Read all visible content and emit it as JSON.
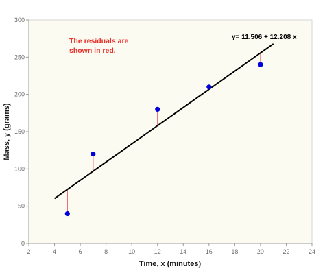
{
  "chart_data": {
    "type": "scatter",
    "title": "",
    "xlabel": "Time, x (minutes)",
    "ylabel": "Mass, y (grams)",
    "xlim": [
      2,
      24
    ],
    "ylim": [
      0,
      300
    ],
    "xticks": [
      2,
      4,
      6,
      8,
      10,
      12,
      14,
      16,
      18,
      20,
      22,
      24
    ],
    "yticks": [
      0,
      50,
      100,
      150,
      200,
      250,
      300
    ],
    "grid": false,
    "points": {
      "x": [
        5,
        7,
        12,
        16,
        20
      ],
      "y": [
        40,
        120,
        180,
        210,
        240
      ]
    },
    "fit_line": {
      "intercept": 11.506,
      "slope": 12.208,
      "x_range": [
        4,
        21
      ],
      "equation_label": "y= 11.506 + 12.208 x"
    },
    "annotation_lines": [
      "The residuals are",
      "shown in red."
    ],
    "colors": {
      "points": "#0000dd",
      "fit_line": "#000000",
      "residuals": "#e8505b",
      "note_text": "#e8302a",
      "plot_background": "#fbfbf2",
      "axis": "#9a9a9a"
    }
  }
}
